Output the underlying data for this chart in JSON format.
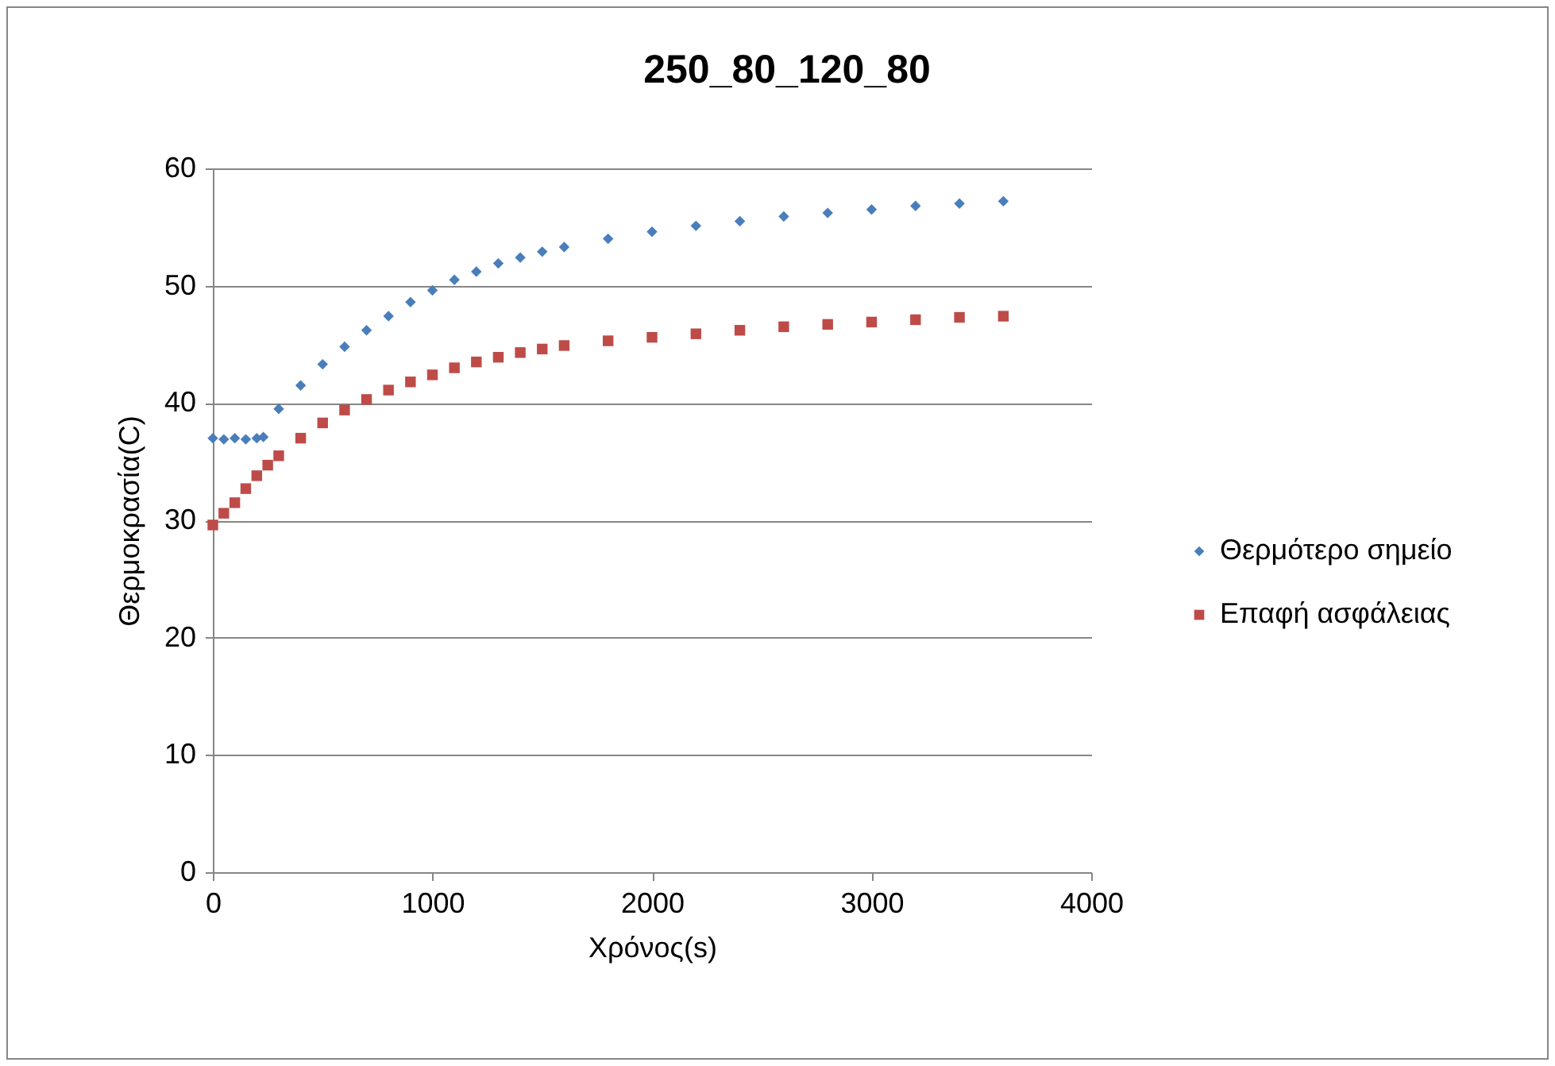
{
  "chart_data": {
    "type": "scatter",
    "title": "250_80_120_80",
    "xlabel": "Χρόνος(s)",
    "ylabel": "Θερμοκρασία(C)",
    "xlim": [
      0,
      4000
    ],
    "xticks": [
      0,
      1000,
      2000,
      3000,
      4000
    ],
    "ylim": [
      0,
      60
    ],
    "yticks": [
      0,
      10,
      20,
      30,
      40,
      50,
      60
    ],
    "grid": "y",
    "legend": "right",
    "series": [
      {
        "name": "Θερμότερο σημείο",
        "color": "#4a7ebb",
        "marker": "diamond",
        "x": [
          0,
          50,
          100,
          150,
          200,
          230,
          300,
          400,
          500,
          600,
          700,
          800,
          900,
          1000,
          1100,
          1200,
          1300,
          1400,
          1500,
          1600,
          1800,
          2000,
          2200,
          2400,
          2600,
          2800,
          3000,
          3200,
          3400,
          3600
        ],
        "values": [
          37,
          36.9,
          37,
          36.9,
          37,
          37.1,
          39.5,
          41.5,
          43.3,
          44.8,
          46.2,
          47.4,
          48.6,
          49.6,
          50.5,
          51.2,
          51.9,
          52.4,
          52.9,
          53.3,
          54.0,
          54.6,
          55.1,
          55.5,
          55.9,
          56.2,
          56.5,
          56.8,
          57.0,
          57.2
        ]
      },
      {
        "name": "Επαφή ασφάλειας",
        "color": "#be4b48",
        "marker": "square",
        "x": [
          0,
          50,
          100,
          150,
          200,
          250,
          300,
          400,
          500,
          600,
          700,
          800,
          900,
          1000,
          1100,
          1200,
          1300,
          1400,
          1500,
          1600,
          1800,
          2000,
          2200,
          2400,
          2600,
          2800,
          3000,
          3200,
          3400,
          3600
        ],
        "values": [
          29.6,
          30.6,
          31.5,
          32.7,
          33.8,
          34.7,
          35.5,
          37.0,
          38.3,
          39.4,
          40.3,
          41.1,
          41.8,
          42.4,
          43.0,
          43.5,
          43.9,
          44.3,
          44.6,
          44.9,
          45.3,
          45.6,
          45.9,
          46.2,
          46.5,
          46.7,
          46.9,
          47.1,
          47.3,
          47.4
        ]
      }
    ]
  }
}
